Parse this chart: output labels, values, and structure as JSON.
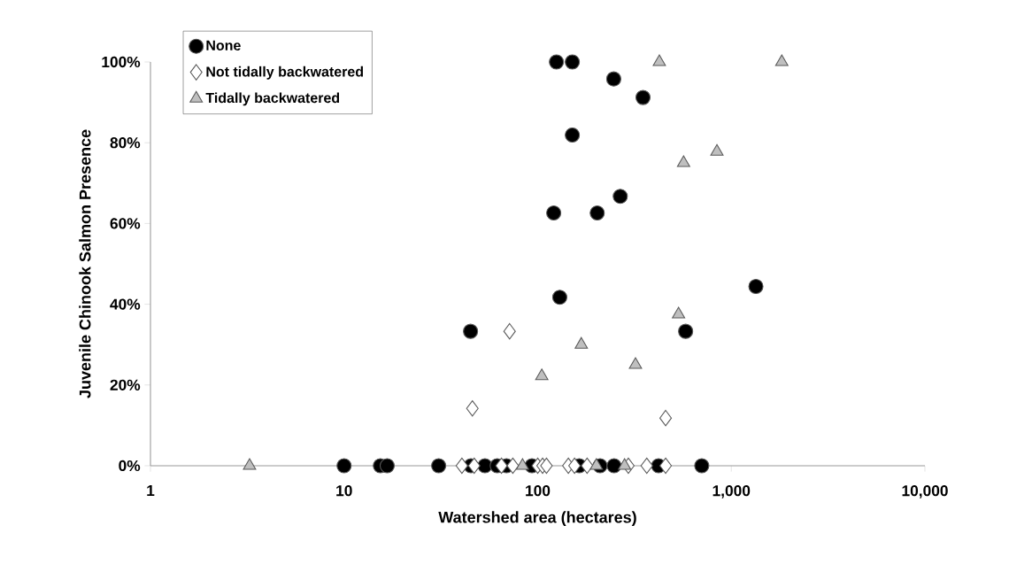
{
  "chart_data": {
    "type": "scatter",
    "xlabel": "Watershed area (hectares)",
    "ylabel": "Juvenile Chinook Salmon Presence",
    "log": "x",
    "xlim": [
      1,
      10000
    ],
    "ylim": [
      0,
      100
    ],
    "xticks": [
      1,
      10,
      100,
      {
        "value": 1000,
        "label": "1,000"
      },
      {
        "value": 10000,
        "label": "10,000"
      }
    ],
    "yticks": [
      {
        "value": 0,
        "label": "0%"
      },
      {
        "value": 20,
        "label": "20%"
      },
      {
        "value": 40,
        "label": "40%"
      },
      {
        "value": 60,
        "label": "60%"
      },
      {
        "value": 80,
        "label": "80%"
      },
      {
        "value": 100,
        "label": "100%"
      }
    ],
    "grid": false,
    "legend": "top left",
    "series": [
      {
        "name": "None",
        "color": "#000000",
        "marker": "circle",
        "x": [
          125,
          151,
          247,
          350,
          151,
          121,
          203,
          267,
          130,
          45,
          1340,
          581,
          10,
          15.4,
          16.7,
          30.8,
          45.2,
          53.4,
          61.8,
          69,
          93.4,
          164,
          210,
          248,
          421,
          704
        ],
        "values": [
          100,
          100,
          95.8,
          91.2,
          81.9,
          62.6,
          62.6,
          66.7,
          41.7,
          33.3,
          44.4,
          33.3,
          0,
          0,
          0,
          0,
          0,
          0,
          0,
          0,
          0,
          0,
          0,
          0,
          0,
          0
        ]
      },
      {
        "name": "Not tidally backwatered",
        "color": "#ffffff",
        "marker": "diamond",
        "x": [
          71.6,
          46,
          458,
          40.6,
          47,
          65,
          74.4,
          100,
          106,
          111,
          144,
          155,
          180,
          294,
          366,
          458
        ],
        "values": [
          33.3,
          14.2,
          11.8,
          0,
          0,
          0,
          0,
          0,
          0,
          0,
          0,
          0,
          0,
          0,
          0,
          0
        ]
      },
      {
        "name": "Tidally backwatered",
        "color": "#bfbfbf",
        "marker": "triangle",
        "x": [
          425,
          1823,
          567,
          843,
          534,
          168,
          105,
          320,
          3.25,
          83.5,
          201,
          281
        ],
        "values": [
          100,
          100,
          75,
          77.8,
          37.5,
          30,
          22.2,
          25,
          0,
          0,
          0,
          0
        ]
      }
    ]
  }
}
